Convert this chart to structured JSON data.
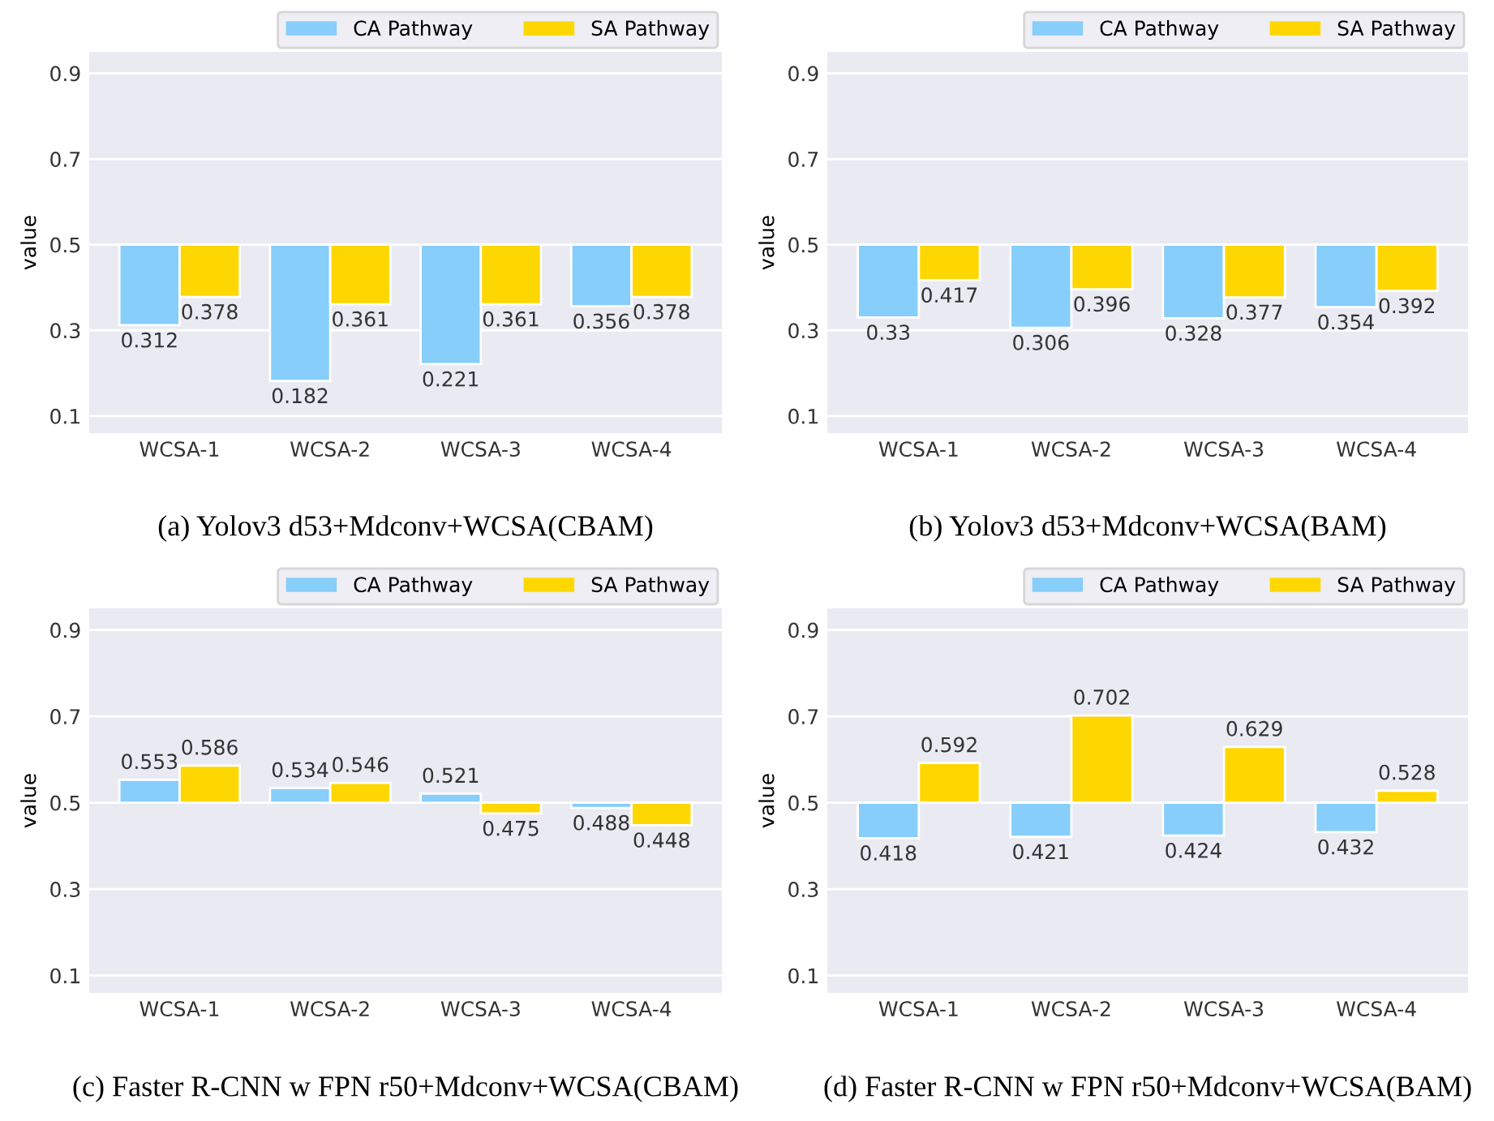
{
  "chart_data": [
    {
      "type": "bar",
      "ylabel": "value",
      "categories": [
        "WCSA-1",
        "WCSA-2",
        "WCSA-3",
        "WCSA-4"
      ],
      "ylim": [
        0.06,
        0.95
      ],
      "yticks": [
        0.1,
        0.3,
        0.5,
        0.7,
        0.9
      ],
      "grid": "y",
      "legend": "top right",
      "annotations": [
        "(a) Yolov3 d53+Mdconv+WCSA(CBAM)"
      ],
      "series": [
        {
          "name": "CA Pathway",
          "color": "#87cefa",
          "base": [
            0.5,
            0.5,
            0.5,
            0.5
          ],
          "values": [
            -0.188,
            -0.318,
            -0.279,
            -0.144
          ],
          "value_labels": [
            "0.312",
            "0.182",
            "0.221",
            "0.356"
          ]
        },
        {
          "name": "SA Pathway",
          "color": "#ffd700",
          "base": [
            0.5,
            0.5,
            0.5,
            0.5
          ],
          "values": [
            -0.122,
            -0.139,
            -0.139,
            -0.122
          ],
          "value_labels": [
            "0.378",
            "0.361",
            "0.361",
            "0.378"
          ]
        }
      ]
    },
    {
      "type": "bar",
      "ylabel": "value",
      "categories": [
        "WCSA-1",
        "WCSA-2",
        "WCSA-3",
        "WCSA-4"
      ],
      "ylim": [
        0.06,
        0.95
      ],
      "yticks": [
        0.1,
        0.3,
        0.5,
        0.7,
        0.9
      ],
      "grid": "y",
      "legend": "top right",
      "annotations": [
        "(b) Yolov3 d53+Mdconv+WCSA(BAM)"
      ],
      "series": [
        {
          "name": "CA Pathway",
          "color": "#87cefa",
          "base": [
            0.5,
            0.5,
            0.5,
            0.5
          ],
          "values": [
            -0.17,
            -0.194,
            -0.172,
            -0.146
          ],
          "value_labels": [
            "0.33",
            "0.306",
            "0.328",
            "0.354"
          ]
        },
        {
          "name": "SA Pathway",
          "color": "#ffd700",
          "base": [
            0.5,
            0.5,
            0.5,
            0.5
          ],
          "values": [
            -0.083,
            -0.104,
            -0.123,
            -0.108
          ],
          "value_labels": [
            "0.417",
            "0.396",
            "0.377",
            "0.392"
          ]
        }
      ]
    },
    {
      "type": "bar",
      "ylabel": "value",
      "categories": [
        "WCSA-1",
        "WCSA-2",
        "WCSA-3",
        "WCSA-4"
      ],
      "ylim": [
        0.06,
        0.95
      ],
      "yticks": [
        0.1,
        0.3,
        0.5,
        0.7,
        0.9
      ],
      "grid": "y",
      "legend": "top right",
      "annotations": [
        "(c) Faster R-CNN w FPN r50+Mdconv+WCSA(CBAM)"
      ],
      "series": [
        {
          "name": "CA Pathway",
          "color": "#87cefa",
          "base": [
            0.5,
            0.5,
            0.5,
            0.5
          ],
          "values": [
            0.053,
            0.034,
            0.021,
            -0.012
          ],
          "value_labels": [
            "0.553",
            "0.534",
            "0.521",
            "0.488"
          ]
        },
        {
          "name": "SA Pathway",
          "color": "#ffd700",
          "base": [
            0.5,
            0.5,
            0.5,
            0.5
          ],
          "values": [
            0.086,
            0.046,
            -0.025,
            -0.052
          ],
          "value_labels": [
            "0.586",
            "0.546",
            "0.475",
            "0.448"
          ]
        }
      ]
    },
    {
      "type": "bar",
      "ylabel": "value",
      "categories": [
        "WCSA-1",
        "WCSA-2",
        "WCSA-3",
        "WCSA-4"
      ],
      "ylim": [
        0.06,
        0.95
      ],
      "yticks": [
        0.1,
        0.3,
        0.5,
        0.7,
        0.9
      ],
      "grid": "y",
      "legend": "top right",
      "annotations": [
        "(d) Faster R-CNN w FPN r50+Mdconv+WCSA(BAM)"
      ],
      "series": [
        {
          "name": "CA Pathway",
          "color": "#87cefa",
          "base": [
            0.5,
            0.5,
            0.5,
            0.5
          ],
          "values": [
            -0.082,
            -0.079,
            -0.076,
            -0.068
          ],
          "value_labels": [
            "0.418",
            "0.421",
            "0.424",
            "0.432"
          ]
        },
        {
          "name": "SA Pathway",
          "color": "#ffd700",
          "base": [
            0.5,
            0.5,
            0.5,
            0.5
          ],
          "values": [
            0.092,
            0.202,
            0.129,
            0.028
          ],
          "value_labels": [
            "0.592",
            "0.702",
            "0.629",
            "0.528"
          ]
        }
      ]
    }
  ]
}
